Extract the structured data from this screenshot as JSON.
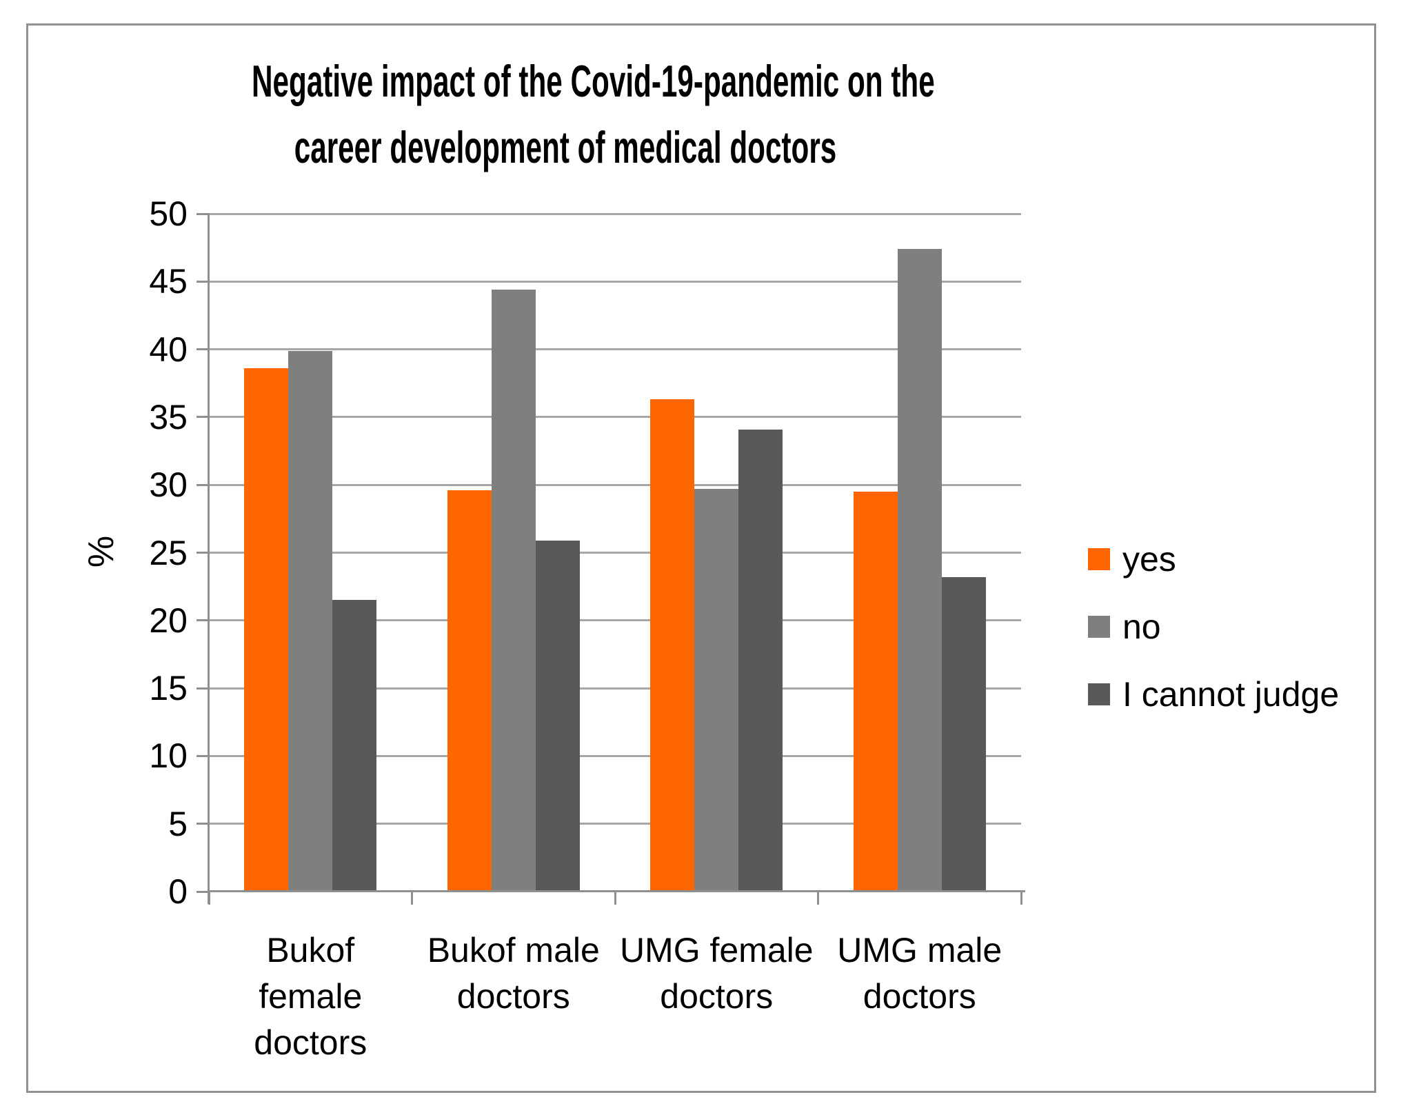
{
  "title": {
    "line1": "Negative impact of the Covid-19-pandemic on the",
    "line2": "career development of medical doctors"
  },
  "chart_data": {
    "type": "bar",
    "title": "Negative impact of the Covid-19-pandemic on the career development of medical doctors",
    "xlabel": "",
    "ylabel": "%",
    "ylim": [
      0,
      50
    ],
    "yticks": [
      0,
      5,
      10,
      15,
      20,
      25,
      30,
      35,
      40,
      45,
      50
    ],
    "grid": true,
    "legend_position": "right",
    "categories": [
      "Bukof female doctors",
      "Bukof male doctors",
      "UMG female doctors",
      "UMG male doctors"
    ],
    "category_label_lines": [
      [
        "Bukof",
        "female",
        "doctors"
      ],
      [
        "Bukof male",
        "doctors"
      ],
      [
        "UMG female",
        "doctors"
      ],
      [
        "UMG male",
        "doctors"
      ]
    ],
    "series": [
      {
        "name": "yes",
        "color": "#FF6600",
        "values": [
          38.6,
          29.6,
          36.3,
          29.5
        ]
      },
      {
        "name": "no",
        "color": "#7F7F7F",
        "values": [
          39.9,
          44.4,
          29.7,
          47.4
        ]
      },
      {
        "name": "I cannot judge",
        "color": "#595959",
        "values": [
          21.5,
          25.9,
          34.1,
          23.2
        ]
      }
    ]
  },
  "colors": {
    "gridline": "#A6A6A6",
    "axis": "#8F8F8F",
    "frame_border": "#919191",
    "text": "#000000",
    "background": "#FFFFFF"
  }
}
